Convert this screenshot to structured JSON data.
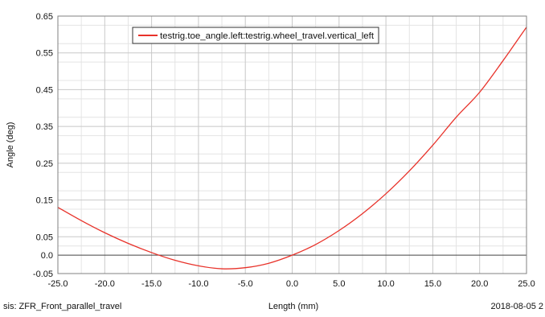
{
  "chart_data": {
    "type": "line",
    "title": "",
    "xlabel": "Length (mm)",
    "ylabel": "Angle (deg)",
    "xlim": [
      -25.0,
      25.0
    ],
    "ylim": [
      -0.05,
      0.65
    ],
    "x_ticks": [
      -25.0,
      -20.0,
      -15.0,
      -10.0,
      -5.0,
      0.0,
      5.0,
      10.0,
      15.0,
      20.0,
      25.0
    ],
    "x_tick_labels": [
      "-25.0",
      "-20.0",
      "-15.0",
      "-10.0",
      "-5.0",
      "0.0",
      "5.0",
      "10.0",
      "15.0",
      "20.0",
      "25.0"
    ],
    "y_ticks": [
      -0.05,
      0.0,
      0.05,
      0.15,
      0.25,
      0.35,
      0.45,
      0.55,
      0.65
    ],
    "y_tick_labels": [
      "-0.05",
      "0.0",
      "0.05",
      "0.15",
      "0.25",
      "0.35",
      "0.45",
      "0.55",
      "0.65"
    ],
    "grid": true,
    "legend_position": "top-left",
    "series": [
      {
        "name": "testrig.toe_angle.left:testrig.wheel_travel.vertical_left",
        "color": "#e8322a",
        "x": [
          -25.0,
          -22.5,
          -20.0,
          -17.5,
          -15.0,
          -12.5,
          -10.0,
          -7.5,
          -5.0,
          -2.5,
          0.0,
          2.5,
          5.0,
          7.5,
          10.0,
          12.5,
          15.0,
          17.5,
          20.0,
          22.5,
          25.0
        ],
        "y": [
          0.13,
          0.094,
          0.061,
          0.032,
          0.007,
          -0.014,
          -0.029,
          -0.037,
          -0.034,
          -0.022,
          0.0,
          0.029,
          0.067,
          0.113,
          0.167,
          0.229,
          0.299,
          0.375,
          0.443,
          0.529,
          0.62
        ]
      }
    ]
  },
  "footer": {
    "analysis": "sis:  ZFR_Front_parallel_travel",
    "date": "2018-08-05 2"
  }
}
